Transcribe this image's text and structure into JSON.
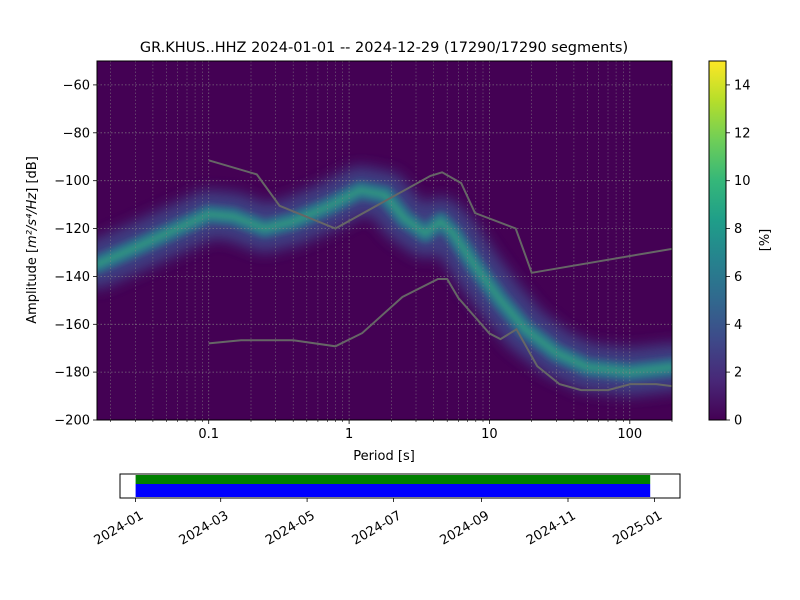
{
  "title": "GR.KHUS..HHZ   2024-01-01 -- 2024-12-29  (17290/17290 segments)",
  "chart_data": [
    {
      "type": "heatmap",
      "name": "probabilistic power spectral density",
      "xlabel": "Period [s]",
      "ylabel_text": "Amplitude [",
      "ylabel_math": "m²/s⁴/Hz",
      "ylabel_end": "] [dB]",
      "x_scale": "log",
      "xlim": [
        0.016,
        200
      ],
      "ylim": [
        -200,
        -50
      ],
      "x_ticks": [
        {
          "value": 0.1,
          "label": "0.1"
        },
        {
          "value": 1,
          "label": "1"
        },
        {
          "value": 10,
          "label": "10"
        },
        {
          "value": 100,
          "label": "100"
        }
      ],
      "y_ticks": [
        -60,
        -80,
        -100,
        -120,
        -140,
        -160,
        -180,
        -200
      ],
      "grid": true,
      "background_color": "#440154",
      "mode_ridge": [
        [
          0.016,
          -135
        ],
        [
          0.03,
          -128
        ],
        [
          0.06,
          -120
        ],
        [
          0.1,
          -114
        ],
        [
          0.15,
          -115
        ],
        [
          0.25,
          -120
        ],
        [
          0.4,
          -117
        ],
        [
          0.7,
          -111
        ],
        [
          1.2,
          -104
        ],
        [
          1.8,
          -106
        ],
        [
          2.5,
          -116
        ],
        [
          3.5,
          -122
        ],
        [
          4.5,
          -117
        ],
        [
          5.5,
          -122
        ],
        [
          8,
          -136
        ],
        [
          12,
          -150
        ],
        [
          18,
          -162
        ],
        [
          30,
          -172
        ],
        [
          50,
          -178
        ],
        [
          100,
          -180
        ],
        [
          200,
          -178
        ]
      ],
      "model_curves": [
        {
          "name": "NHNM",
          "x": [
            0.1,
            0.22,
            0.32,
            0.8,
            3.8,
            4.6,
            6.3,
            7.9,
            15.4,
            20,
            354.8
          ],
          "y": [
            -91.5,
            -97.4,
            -110.5,
            -120,
            -98,
            -96.5,
            -101,
            -113.5,
            -120,
            -138.5,
            -126
          ]
        },
        {
          "name": "NLNM",
          "x": [
            0.1,
            0.17,
            0.4,
            0.8,
            1.24,
            2.4,
            4.3,
            5,
            6,
            10,
            12,
            15.6,
            21.9,
            31.6,
            45,
            70,
            101,
            154,
            328
          ],
          "y": [
            -168,
            -166.7,
            -166.7,
            -169.2,
            -163.7,
            -148.6,
            -141.1,
            -141.1,
            -149,
            -163.8,
            -166.2,
            -162.1,
            -177.5,
            -185,
            -187.5,
            -187.5,
            -185,
            -185,
            -187.5
          ]
        }
      ],
      "model_line_color": "#666666",
      "colorbar": {
        "label": "[%]",
        "range": [
          0,
          15
        ],
        "ticks": [
          0,
          2,
          4,
          6,
          8,
          10,
          12,
          14
        ],
        "stops": [
          "#440154",
          "#482878",
          "#3e4989",
          "#31688e",
          "#26828e",
          "#1f9e89",
          "#35b779",
          "#6ece58",
          "#b5de2b",
          "#fde725"
        ]
      }
    },
    {
      "type": "bar",
      "name": "data coverage",
      "x_type": "date",
      "xlim": [
        "2023-12-21",
        "2025-01-19"
      ],
      "x_ticks": [
        "2024-01",
        "2024-03",
        "2024-05",
        "2024-07",
        "2024-09",
        "2024-11",
        "2025-01"
      ],
      "series": [
        {
          "color": "#008000",
          "start": "2024-01-01",
          "end": "2024-12-29"
        },
        {
          "color": "#0000ff",
          "start": "2024-01-01",
          "end": "2024-12-29"
        }
      ]
    }
  ]
}
